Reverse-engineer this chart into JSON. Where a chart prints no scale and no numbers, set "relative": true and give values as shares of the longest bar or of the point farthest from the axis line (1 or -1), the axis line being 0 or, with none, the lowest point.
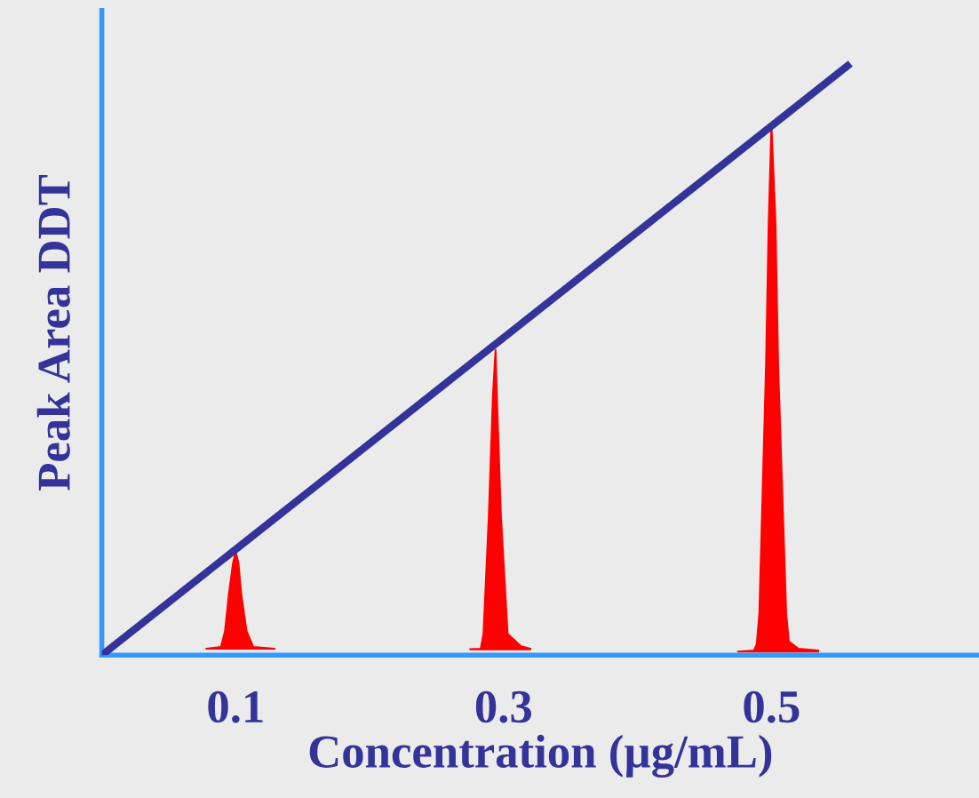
{
  "chart_data": {
    "type": "line",
    "relative": true,
    "xlabel": "Concentration (µg/mL)",
    "ylabel": "Peak Area DDT",
    "xlim": [
      0,
      0.655
    ],
    "xticks": [
      0.1,
      0.3,
      0.5
    ],
    "tick_labels": "x",
    "grid": false,
    "legend": false,
    "marker": "none",
    "series": [
      {
        "color": "#333399",
        "x": [
          0,
          0.559
        ],
        "values": [
          0,
          1
        ]
      },
      {
        "type": "area",
        "color": "#ff0000",
        "x": [
          0.078,
          0.089,
          0.092,
          0.095,
          0.098,
          0.1,
          0.102,
          0.104,
          0.108,
          0.113,
          0.129
        ],
        "values": [
          0.011,
          0.014,
          0.041,
          0.105,
          0.156,
          0.174,
          0.156,
          0.105,
          0.041,
          0.014,
          0.011
        ]
      },
      {
        "type": "area",
        "color": "#ff0000",
        "x": [
          0.275,
          0.283,
          0.285,
          0.289,
          0.292,
          0.294,
          0.295,
          0.298,
          0.303,
          0.313,
          0.32
        ],
        "values": [
          0.01,
          0.011,
          0.036,
          0.236,
          0.436,
          0.516,
          0.436,
          0.236,
          0.036,
          0.015,
          0.011
        ]
      },
      {
        "type": "area",
        "color": "#ff0000",
        "x": [
          0.475,
          0.487,
          0.489,
          0.491,
          0.496,
          0.498,
          0.5,
          0.503,
          0.505,
          0.511,
          0.513,
          0.52,
          0.535
        ],
        "values": [
          0.006,
          0.008,
          0.018,
          0.071,
          0.492,
          0.733,
          0.896,
          0.733,
          0.492,
          0.071,
          0.023,
          0.011,
          0.008
        ]
      }
    ]
  }
}
